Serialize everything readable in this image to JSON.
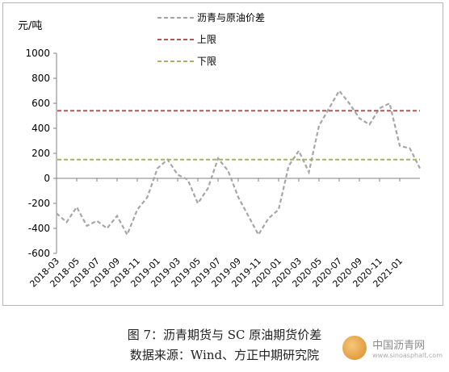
{
  "caption": {
    "line1": "图 7：沥青期货与 SC 原油期货价差",
    "line2": "数据来源：Wind、方正中期研究院"
  },
  "watermark": {
    "name": "中国沥青网",
    "url": "www.sinoasphalt.com"
  },
  "chart_data": {
    "type": "line",
    "ylabel": "元/吨",
    "ylim": [
      -600,
      1000
    ],
    "yticks": [
      -600,
      -400,
      -200,
      0,
      200,
      400,
      600,
      800,
      1000
    ],
    "xtick_labels": [
      "2018-03",
      "2018-05",
      "2018-07",
      "2018-09",
      "2018-11",
      "2019-01",
      "2019-03",
      "2019-05",
      "2019-07",
      "2019-09",
      "2019-11",
      "2020-01",
      "2020-03",
      "2020-05",
      "2020-07",
      "2020-09",
      "2020-11",
      "2021-01"
    ],
    "grid": false,
    "legend_position": "top",
    "series": [
      {
        "name": "沥青与原油价差",
        "style": "dashed",
        "color": "#a6a6a6",
        "points": [
          [
            "2018-03",
            -280
          ],
          [
            "2018-04",
            -350
          ],
          [
            "2018-05",
            -230
          ],
          [
            "2018-06",
            -380
          ],
          [
            "2018-07",
            -340
          ],
          [
            "2018-08",
            -400
          ],
          [
            "2018-09",
            -300
          ],
          [
            "2018-10",
            -450
          ],
          [
            "2018-11",
            -250
          ],
          [
            "2018-12",
            -150
          ],
          [
            "2019-01",
            80
          ],
          [
            "2019-02",
            150
          ],
          [
            "2019-03",
            30
          ],
          [
            "2019-04",
            -10
          ],
          [
            "2019-05",
            -200
          ],
          [
            "2019-06",
            -80
          ],
          [
            "2019-07",
            160
          ],
          [
            "2019-08",
            60
          ],
          [
            "2019-09",
            -150
          ],
          [
            "2019-10",
            -300
          ],
          [
            "2019-11",
            -450
          ],
          [
            "2019-12",
            -320
          ],
          [
            "2020-01",
            -250
          ],
          [
            "2020-02",
            100
          ],
          [
            "2020-03",
            220
          ],
          [
            "2020-04",
            50
          ],
          [
            "2020-05",
            420
          ],
          [
            "2020-06",
            560
          ],
          [
            "2020-07",
            700
          ],
          [
            "2020-08",
            600
          ],
          [
            "2020-09",
            480
          ],
          [
            "2020-10",
            430
          ],
          [
            "2020-11",
            560
          ],
          [
            "2020-12",
            600
          ],
          [
            "2021-01",
            260
          ],
          [
            "2021-02",
            240
          ],
          [
            "2021-03",
            80
          ]
        ]
      },
      {
        "name": "上限",
        "style": "dashed",
        "color": "#c0504d",
        "value": 540
      },
      {
        "name": "下限",
        "style": "dashed",
        "color": "#9bbb59",
        "value": 150
      }
    ]
  }
}
